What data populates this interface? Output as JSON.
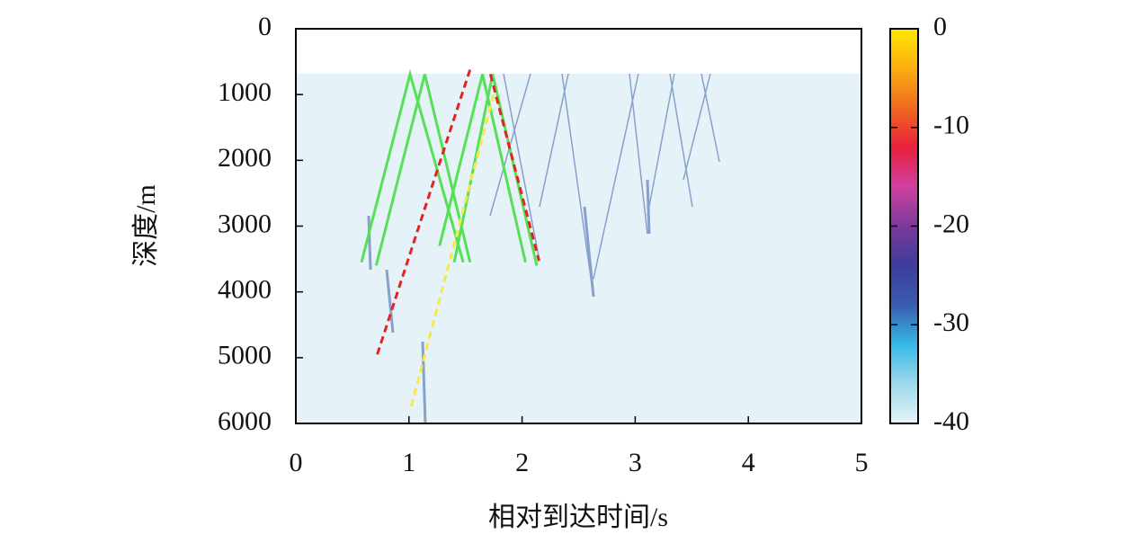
{
  "chart_data": {
    "type": "line",
    "xlabel": "相对到达时间/s",
    "ylabel": "深度/m",
    "xlim": [
      0,
      5
    ],
    "xticks": [
      0,
      1,
      2,
      3,
      4,
      5
    ],
    "ylim": [
      6000,
      0
    ],
    "yticks": [
      0,
      1000,
      2000,
      3000,
      4000,
      5000,
      6000
    ],
    "series": [
      {
        "color": "#55e055",
        "linestyle": "solid",
        "x": [
          0.58,
          1.01,
          1.48
        ],
        "values": [
          3550,
          690,
          3550
        ]
      },
      {
        "color": "#55e055",
        "linestyle": "solid",
        "x": [
          0.71,
          1.14,
          1.54
        ],
        "values": [
          3600,
          690,
          3550
        ]
      },
      {
        "color": "#55e055",
        "linestyle": "solid",
        "x": [
          1.27,
          1.65,
          2.03
        ],
        "values": [
          3300,
          690,
          3550
        ]
      },
      {
        "color": "#55e055",
        "linestyle": "solid",
        "x": [
          1.4,
          1.74,
          2.13
        ],
        "values": [
          3550,
          690,
          3600
        ]
      },
      {
        "color": "#e52222",
        "linestyle": "dashed",
        "x": [
          0.72,
          1.54
        ],
        "values": [
          4950,
          620
        ]
      },
      {
        "color": "#e52222",
        "linestyle": "dashed",
        "x": [
          1.72,
          2.15
        ],
        "values": [
          690,
          3530
        ]
      },
      {
        "color": "#f5e84a",
        "linestyle": "dashed",
        "x": [
          1.02,
          1.75
        ],
        "values": [
          5740,
          1000
        ]
      }
    ],
    "colorbar": {
      "lim": [
        -40,
        0
      ],
      "ticks": [
        0,
        -10,
        -20,
        -30,
        -40
      ],
      "colors": [
        "#e6f3f8",
        "#9fd9ea",
        "#35b9e6",
        "#3a5cb0",
        "#3d3d9a",
        "#7a3a9a",
        "#d040a0",
        "#e8203a",
        "#f06a20",
        "#fcae10",
        "#ffe800"
      ]
    }
  }
}
